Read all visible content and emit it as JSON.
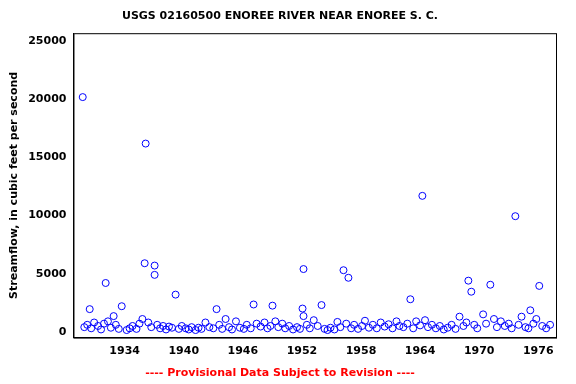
{
  "chart_data": {
    "type": "scatter",
    "title": "USGS 02160500 ENOREE RIVER NEAR ENOREE S. C.",
    "y_label": "Streamflow, in cubic feet per second",
    "annotations": [
      "---- Provisional Data Subject to Revision ----"
    ],
    "color": "#0000ff",
    "marker": "circle",
    "grid": false,
    "xlim": [
      1928.8,
      1977.8
    ],
    "xticks": [
      1934,
      1940,
      1946,
      1952,
      1958,
      1964,
      1970,
      1976
    ],
    "ylim": [
      -500,
      25700
    ],
    "yticks": [
      0,
      5000,
      10000,
      15000,
      20000,
      25000
    ],
    "x": [
      1929.74,
      1930.45,
      1932.07,
      1932.88,
      1933.7,
      1936.13,
      1936.03,
      1937.04,
      1937.04,
      1939.17,
      1943.33,
      1944.25,
      1947.09,
      1949.01,
      1952.16,
      1952.06,
      1952.16,
      1953.99,
      1956.22,
      1956.72,
      1963.01,
      1964.23,
      1968.9,
      1969.2,
      1971.13,
      1973.67,
      1975.19,
      1976.1,
      1929.9,
      1930.2,
      1930.6,
      1930.9,
      1931.3,
      1931.6,
      1931.9,
      1932.3,
      1932.6,
      1933.1,
      1933.4,
      1934.2,
      1934.5,
      1934.8,
      1935.2,
      1935.5,
      1935.8,
      1936.4,
      1936.7,
      1937.3,
      1937.6,
      1937.9,
      1938.2,
      1938.5,
      1938.8,
      1939.5,
      1939.8,
      1940.2,
      1940.5,
      1940.8,
      1941.2,
      1941.5,
      1941.8,
      1942.2,
      1942.6,
      1943.0,
      1943.6,
      1943.9,
      1944.6,
      1944.9,
      1945.3,
      1945.7,
      1946.1,
      1946.4,
      1946.8,
      1947.4,
      1947.8,
      1948.2,
      1948.5,
      1948.8,
      1949.3,
      1949.6,
      1950.0,
      1950.3,
      1950.7,
      1951.1,
      1951.5,
      1951.8,
      1952.5,
      1952.8,
      1953.2,
      1953.6,
      1954.3,
      1954.6,
      1954.9,
      1955.3,
      1955.6,
      1955.9,
      1956.5,
      1957.0,
      1957.3,
      1957.7,
      1958.1,
      1958.4,
      1958.8,
      1959.2,
      1959.6,
      1960.0,
      1960.4,
      1960.8,
      1961.2,
      1961.6,
      1961.9,
      1962.3,
      1962.7,
      1963.3,
      1963.6,
      1964.0,
      1964.5,
      1964.8,
      1965.2,
      1965.6,
      1966.0,
      1966.4,
      1966.8,
      1967.2,
      1967.6,
      1968.0,
      1968.4,
      1968.7,
      1969.5,
      1969.8,
      1970.4,
      1970.7,
      1971.5,
      1971.8,
      1972.2,
      1972.6,
      1973.0,
      1973.3,
      1974.0,
      1974.3,
      1974.7,
      1975.0,
      1975.5,
      1975.8,
      1976.4,
      1976.8,
      1977.2
    ],
    "values": [
      20200,
      1950,
      4200,
      1350,
      2200,
      16200,
      5900,
      5700,
      4900,
      3200,
      1950,
      1100,
      2350,
      2250,
      5400,
      2000,
      1350,
      2300,
      5300,
      4650,
      2800,
      11700,
      4400,
      3450,
      4050,
      9950,
      1850,
      3950,
      400,
      600,
      300,
      800,
      500,
      200,
      700,
      900,
      350,
      600,
      250,
      150,
      300,
      500,
      250,
      700,
      1100,
      800,
      400,
      600,
      300,
      500,
      200,
      450,
      350,
      250,
      500,
      300,
      200,
      400,
      150,
      350,
      250,
      800,
      400,
      300,
      600,
      250,
      400,
      200,
      900,
      350,
      250,
      600,
      300,
      700,
      450,
      800,
      300,
      500,
      900,
      400,
      700,
      300,
      500,
      200,
      400,
      250,
      600,
      300,
      1000,
      500,
      250,
      150,
      350,
      200,
      850,
      400,
      700,
      300,
      600,
      250,
      500,
      950,
      350,
      600,
      300,
      800,
      450,
      650,
      300,
      900,
      500,
      400,
      700,
      300,
      900,
      550,
      1000,
      400,
      600,
      300,
      500,
      200,
      350,
      600,
      250,
      1300,
      500,
      800,
      600,
      300,
      1500,
      700,
      1100,
      400,
      900,
      500,
      700,
      300,
      600,
      1300,
      400,
      300,
      700,
      1100,
      500,
      300,
      600
    ]
  }
}
